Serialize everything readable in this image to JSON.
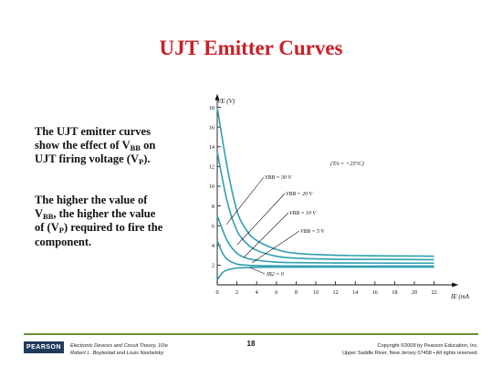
{
  "slide": {
    "title": "UJT Emitter Curves",
    "para1": {
      "line1": "The UJT emitter curves",
      "line2_pre": "show the effect of V",
      "line2_sub": "BB",
      "line2_post": " on",
      "line3_pre": "UJT firing voltage (V",
      "line3_sub": "P",
      "line3_post": ")."
    },
    "para2": {
      "line1": "The higher the value of",
      "line2_pre": "V",
      "line2_sub": "BB",
      "line2_post": ", the higher the value",
      "line3_pre": "of (V",
      "line3_sub": "P",
      "line3_post": ") required to fire the",
      "line4": "component."
    }
  },
  "chart_data": {
    "type": "line",
    "ylabel": "VE (V)",
    "xlabel": "IE (mA",
    "xlim": [
      0,
      24
    ],
    "ylim": [
      0,
      19
    ],
    "x_ticks": [
      0,
      2,
      4,
      6,
      8,
      10,
      12,
      14,
      16,
      18,
      20,
      22
    ],
    "y_ticks": [
      2,
      4,
      6,
      8,
      10,
      12,
      14,
      16,
      18
    ],
    "condition_label": "(TA = +25°C)",
    "series": [
      {
        "name": "VBB = 30 V",
        "x": [
          0,
          1,
          2,
          3,
          4,
          6,
          8,
          12,
          16,
          20,
          22
        ],
        "y": [
          18.0,
          12.0,
          7.5,
          5.5,
          4.5,
          3.6,
          3.2,
          3.0,
          2.95,
          2.92,
          2.9
        ]
      },
      {
        "name": "VBB = 20 V",
        "x": [
          0,
          1,
          2,
          3,
          4,
          6,
          8,
          12,
          16,
          20,
          22
        ],
        "y": [
          13.5,
          8.5,
          5.5,
          4.2,
          3.5,
          2.9,
          2.7,
          2.6,
          2.58,
          2.56,
          2.55
        ]
      },
      {
        "name": "VBB = 10 V",
        "x": [
          0,
          1,
          2,
          3,
          4,
          6,
          8,
          12,
          16,
          20,
          22
        ],
        "y": [
          7.0,
          4.5,
          3.2,
          2.7,
          2.5,
          2.3,
          2.25,
          2.22,
          2.21,
          2.2,
          2.2
        ]
      },
      {
        "name": "VBB = 5 V",
        "x": [
          0,
          0.5,
          1,
          2,
          3,
          4,
          6,
          10,
          16,
          22
        ],
        "y": [
          4.5,
          3.3,
          2.6,
          2.1,
          2.0,
          1.95,
          1.92,
          1.9,
          1.9,
          1.9
        ]
      },
      {
        "name": "IB2 = 0",
        "x": [
          0,
          0.5,
          1,
          2,
          3,
          4,
          6,
          10,
          16,
          22
        ],
        "y": [
          0.5,
          1.2,
          1.5,
          1.7,
          1.75,
          1.78,
          1.8,
          1.8,
          1.8,
          1.8
        ]
      }
    ],
    "labels": {
      "vbb30": "VBB = 30 V",
      "vbb20": "VBB = 20 V",
      "vbb10": "VBB = 10 V",
      "vbb5": "VBB = 5 V",
      "ib2": "IB2 = 0"
    },
    "curve_color": "#2f9fb1"
  },
  "footer": {
    "logo": "PEARSON",
    "book_line1": "Electronic Devices and Circuit Theory, 10/e",
    "book_line2": "Robert L. Boylestad and Louis Nashelsky",
    "page": "18",
    "copy_line1": "Copyright ©2009 by Pearson Education, Inc.",
    "copy_line2": "Upper Saddle River, New Jersey 07458 • All rights reserved."
  }
}
